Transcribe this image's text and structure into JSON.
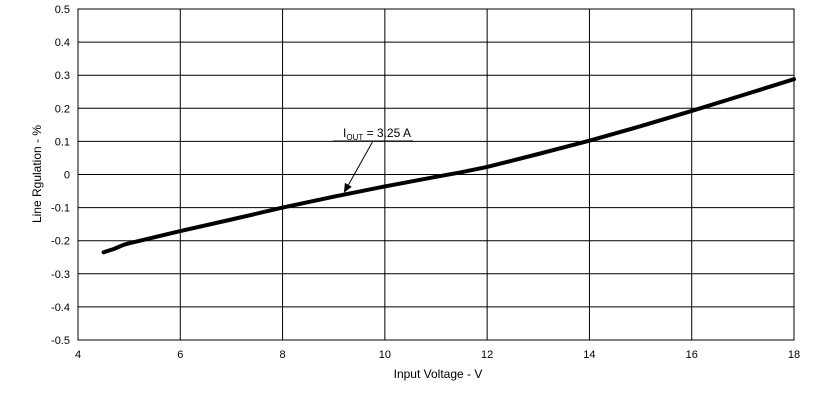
{
  "chart_data": {
    "type": "line",
    "xlabel": "Input Voltage - V",
    "ylabel": "Line Rgulation - %",
    "xlim": [
      4,
      18
    ],
    "ylim": [
      -0.5,
      0.5
    ],
    "x_ticks": [
      4,
      6,
      8,
      10,
      12,
      14,
      16,
      18
    ],
    "y_ticks": [
      -0.5,
      -0.4,
      -0.3,
      -0.2,
      -0.1,
      0,
      0.1,
      0.2,
      0.3,
      0.4,
      0.5
    ],
    "x_tick_labels": [
      "4",
      "6",
      "8",
      "10",
      "12",
      "14",
      "16",
      "18"
    ],
    "y_tick_labels": [
      "-0.5",
      "-0.4",
      "-0.3",
      "-0.2",
      "-0.1",
      "0",
      "0.1",
      "0.2",
      "0.3",
      "0.4",
      "0.5"
    ],
    "grid": true,
    "series": [
      {
        "color": "#000000",
        "x": [
          4.5,
          4.7,
          4.9,
          5.0,
          6.0,
          7.0,
          8.0,
          9.0,
          10.0,
          11.0,
          11.5,
          12.0,
          13.0,
          14.0,
          15.0,
          16.0,
          17.0,
          18.0
        ],
        "y": [
          -0.235,
          -0.225,
          -0.212,
          -0.208,
          -0.171,
          -0.136,
          -0.1,
          -0.067,
          -0.036,
          -0.007,
          0.007,
          0.023,
          0.062,
          0.102,
          0.146,
          0.192,
          0.24,
          0.288
        ]
      }
    ],
    "annotation": {
      "main": "I",
      "sub": "OUT",
      "rest": " = 3.25 A",
      "arrow_target": [
        9.2,
        -0.055
      ]
    }
  }
}
